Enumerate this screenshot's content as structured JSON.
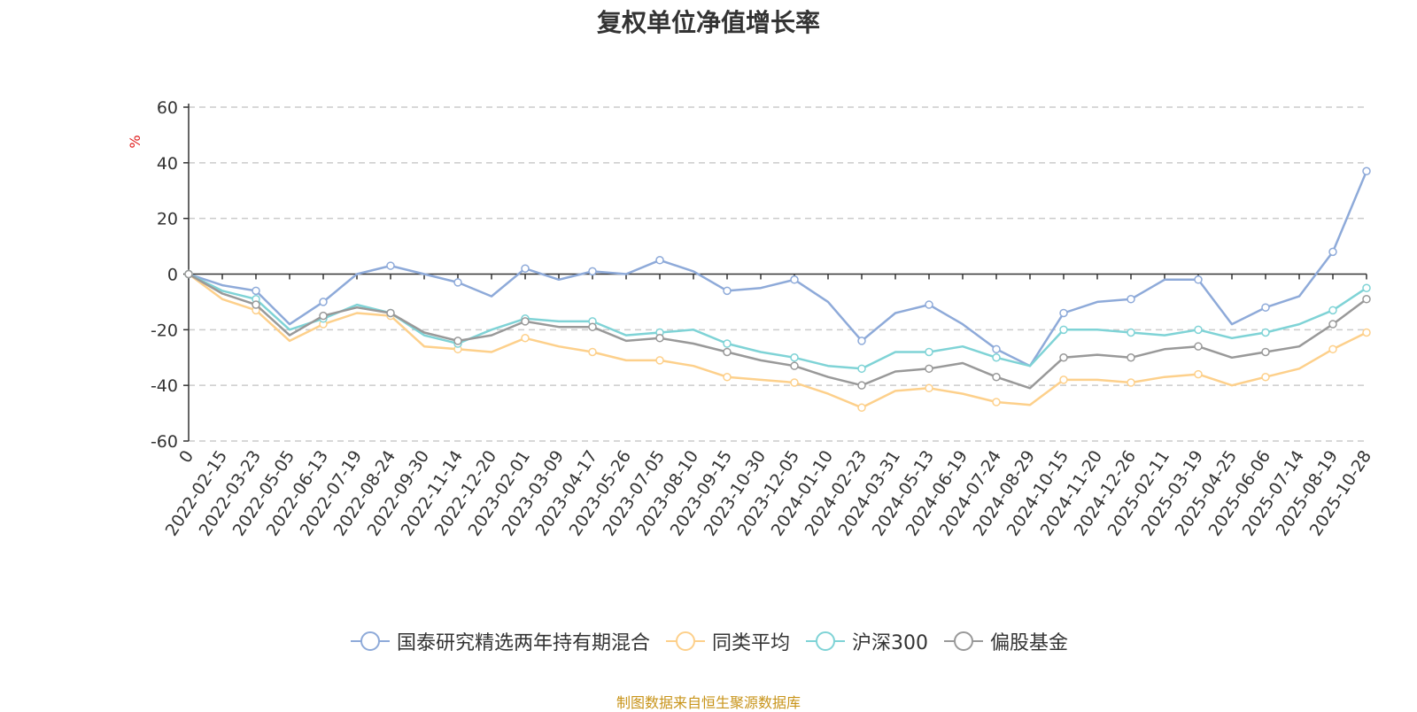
{
  "chart_data": {
    "type": "line",
    "title": "复权单位净值增长率",
    "ylabel": "%",
    "ylim": [
      -60,
      60
    ],
    "yticks": [
      "60",
      "40",
      "20",
      "0",
      "-20",
      "-40",
      "-60"
    ],
    "x_ticks": [
      "0",
      "2022-02-15",
      "2022-03-23",
      "2022-05-05",
      "2022-06-13",
      "2022-07-19",
      "2022-08-24",
      "2022-09-30",
      "2022-11-14",
      "2022-12-20",
      "2023-02-01",
      "2023-03-09",
      "2023-04-17",
      "2023-05-26",
      "2023-07-05",
      "2023-08-10",
      "2023-09-15",
      "2023-10-30",
      "2023-12-05",
      "2024-01-10",
      "2024-02-23",
      "2024-03-31",
      "2024-05-13",
      "2024-06-19",
      "2024-07-24",
      "2024-08-29",
      "2024-10-15",
      "2024-11-20",
      "2024-12-26",
      "2025-02-11",
      "2025-03-19",
      "2025-04-25",
      "2025-06-06",
      "2025-07-14",
      "2025-08-19",
      "2025-10-28"
    ],
    "x": [
      "0",
      "2022-02-15",
      "2022-03-23",
      "2022-05-05",
      "2022-06-13",
      "2022-07-19",
      "2022-08-24",
      "2022-09-30",
      "2022-11-14",
      "2022-12-20",
      "2023-02-01",
      "2023-03-09",
      "2023-04-17",
      "2023-05-26",
      "2023-07-05",
      "2023-08-10",
      "2023-09-15",
      "2023-10-30",
      "2023-12-05",
      "2024-01-10",
      "2024-02-23",
      "2024-03-31",
      "2024-05-13",
      "2024-06-19",
      "2024-07-24",
      "2024-08-29",
      "2024-10-15",
      "2024-11-20",
      "2024-12-26",
      "2025-02-11",
      "2025-03-19",
      "2025-04-25",
      "2025-06-06",
      "2025-07-14",
      "2025-08-19",
      "2025-10-28"
    ],
    "series": [
      {
        "name": "国泰研究精选两年持有期混合",
        "color": "#8eaad9",
        "values": [
          0,
          -4,
          -6,
          -18,
          -10,
          0,
          3,
          0,
          -3,
          -8,
          2,
          -2,
          1,
          0,
          5,
          1,
          -6,
          -5,
          -2,
          -10,
          -24,
          -14,
          -11,
          -18,
          -27,
          -33,
          -14,
          -10,
          -9,
          -2,
          -2,
          -18,
          -12,
          -8,
          8,
          37
        ]
      },
      {
        "name": "同类平均",
        "color": "#fdd08b",
        "values": [
          0,
          -9,
          -13,
          -24,
          -18,
          -14,
          -15,
          -26,
          -27,
          -28,
          -23,
          -26,
          -28,
          -31,
          -31,
          -33,
          -37,
          -38,
          -39,
          -43,
          -48,
          -42,
          -41,
          -43,
          -46,
          -47,
          -38,
          -38,
          -39,
          -37,
          -36,
          -40,
          -37,
          -34,
          -27,
          -21
        ]
      },
      {
        "name": "沪深300",
        "color": "#7fd3d6",
        "values": [
          0,
          -6,
          -9,
          -20,
          -16,
          -11,
          -14,
          -22,
          -25,
          -20,
          -16,
          -17,
          -17,
          -22,
          -21,
          -20,
          -25,
          -28,
          -30,
          -33,
          -34,
          -28,
          -28,
          -26,
          -30,
          -33,
          -20,
          -20,
          -21,
          -22,
          -20,
          -23,
          -21,
          -18,
          -13,
          -5
        ]
      },
      {
        "name": "偏股基金",
        "color": "#999999",
        "values": [
          0,
          -7,
          -11,
          -22,
          -15,
          -12,
          -14,
          -21,
          -24,
          -22,
          -17,
          -19,
          -19,
          -24,
          -23,
          -25,
          -28,
          -31,
          -33,
          -37,
          -40,
          -35,
          -34,
          -32,
          -37,
          -41,
          -30,
          -29,
          -30,
          -27,
          -26,
          -30,
          -28,
          -26,
          -18,
          -9
        ]
      }
    ]
  },
  "legend": {
    "items": [
      {
        "label": "国泰研究精选两年持有期混合",
        "color": "#8eaad9"
      },
      {
        "label": "同类平均",
        "color": "#fdd08b"
      },
      {
        "label": "沪深300",
        "color": "#7fd3d6"
      },
      {
        "label": "偏股基金",
        "color": "#999999"
      }
    ]
  },
  "source": {
    "text": "制图数据来自恒生聚源数据库"
  },
  "colors": {
    "axis": "#333333",
    "grid": "#cccccc",
    "ylabel": "#e02020"
  }
}
